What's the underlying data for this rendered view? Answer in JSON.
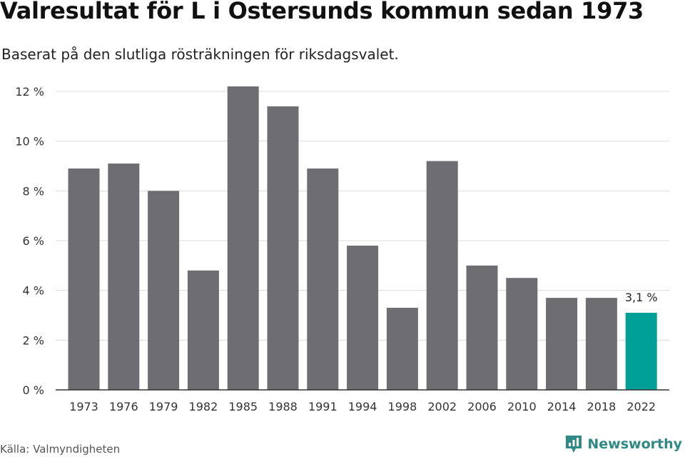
{
  "header": {
    "title": "Valresultat för L i Östersunds kommun sedan 1973",
    "subtitle": "Baserat på den slutliga rösträkningen för riksdagsvalet."
  },
  "footer": {
    "source": "Källa: Valmyndigheten",
    "brand": "Newsworthy"
  },
  "colors": {
    "bar": "#6e6d72",
    "highlight": "#00a096",
    "grid": "#dcdcdc",
    "axis": "#333333",
    "brand": "#2f8a86"
  },
  "chart_data": {
    "type": "bar",
    "title": "Valresultat för L i Östersunds kommun sedan 1973",
    "subtitle": "Baserat på den slutliga rösträkningen för riksdagsvalet.",
    "categories": [
      "1973",
      "1976",
      "1979",
      "1982",
      "1985",
      "1988",
      "1991",
      "1994",
      "1998",
      "2002",
      "2006",
      "2010",
      "2014",
      "2018",
      "2022"
    ],
    "values": [
      8.9,
      9.1,
      8.0,
      4.8,
      12.2,
      11.4,
      8.9,
      5.8,
      3.3,
      9.2,
      5.0,
      4.5,
      3.7,
      3.7,
      3.1
    ],
    "ylim": [
      0,
      12
    ],
    "yticks": [
      0,
      2,
      4,
      6,
      8,
      10,
      12
    ],
    "ytick_labels": [
      "0 %",
      "2 %",
      "4 %",
      "6 %",
      "8 %",
      "10 %",
      "12 %"
    ],
    "grid": true,
    "highlight_index": 14,
    "data_labels": [
      {
        "index": 14,
        "text": "3,1 %"
      }
    ]
  }
}
